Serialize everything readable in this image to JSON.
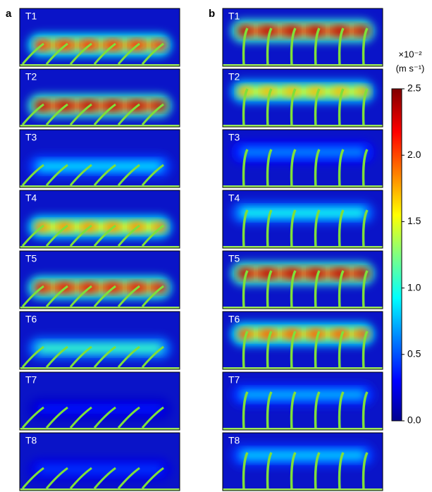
{
  "panels": [
    {
      "label": "a",
      "frames": [
        "T1",
        "T2",
        "T3",
        "T4",
        "T5",
        "T6",
        "T7",
        "T8"
      ]
    },
    {
      "label": "b",
      "frames": [
        "T1",
        "T2",
        "T3",
        "T4",
        "T5",
        "T6",
        "T7",
        "T8"
      ]
    }
  ],
  "colorbar": {
    "scale_label": "×10⁻²",
    "unit_label": "(m s⁻¹)",
    "lim": [
      0,
      2.5
    ],
    "ticks": [
      {
        "value": 0,
        "label": "0.0"
      },
      0.5,
      {
        "value": 1,
        "label": "1.0"
      },
      1.5,
      {
        "value": 2,
        "label": "2.0"
      },
      2.5
    ]
  }
}
